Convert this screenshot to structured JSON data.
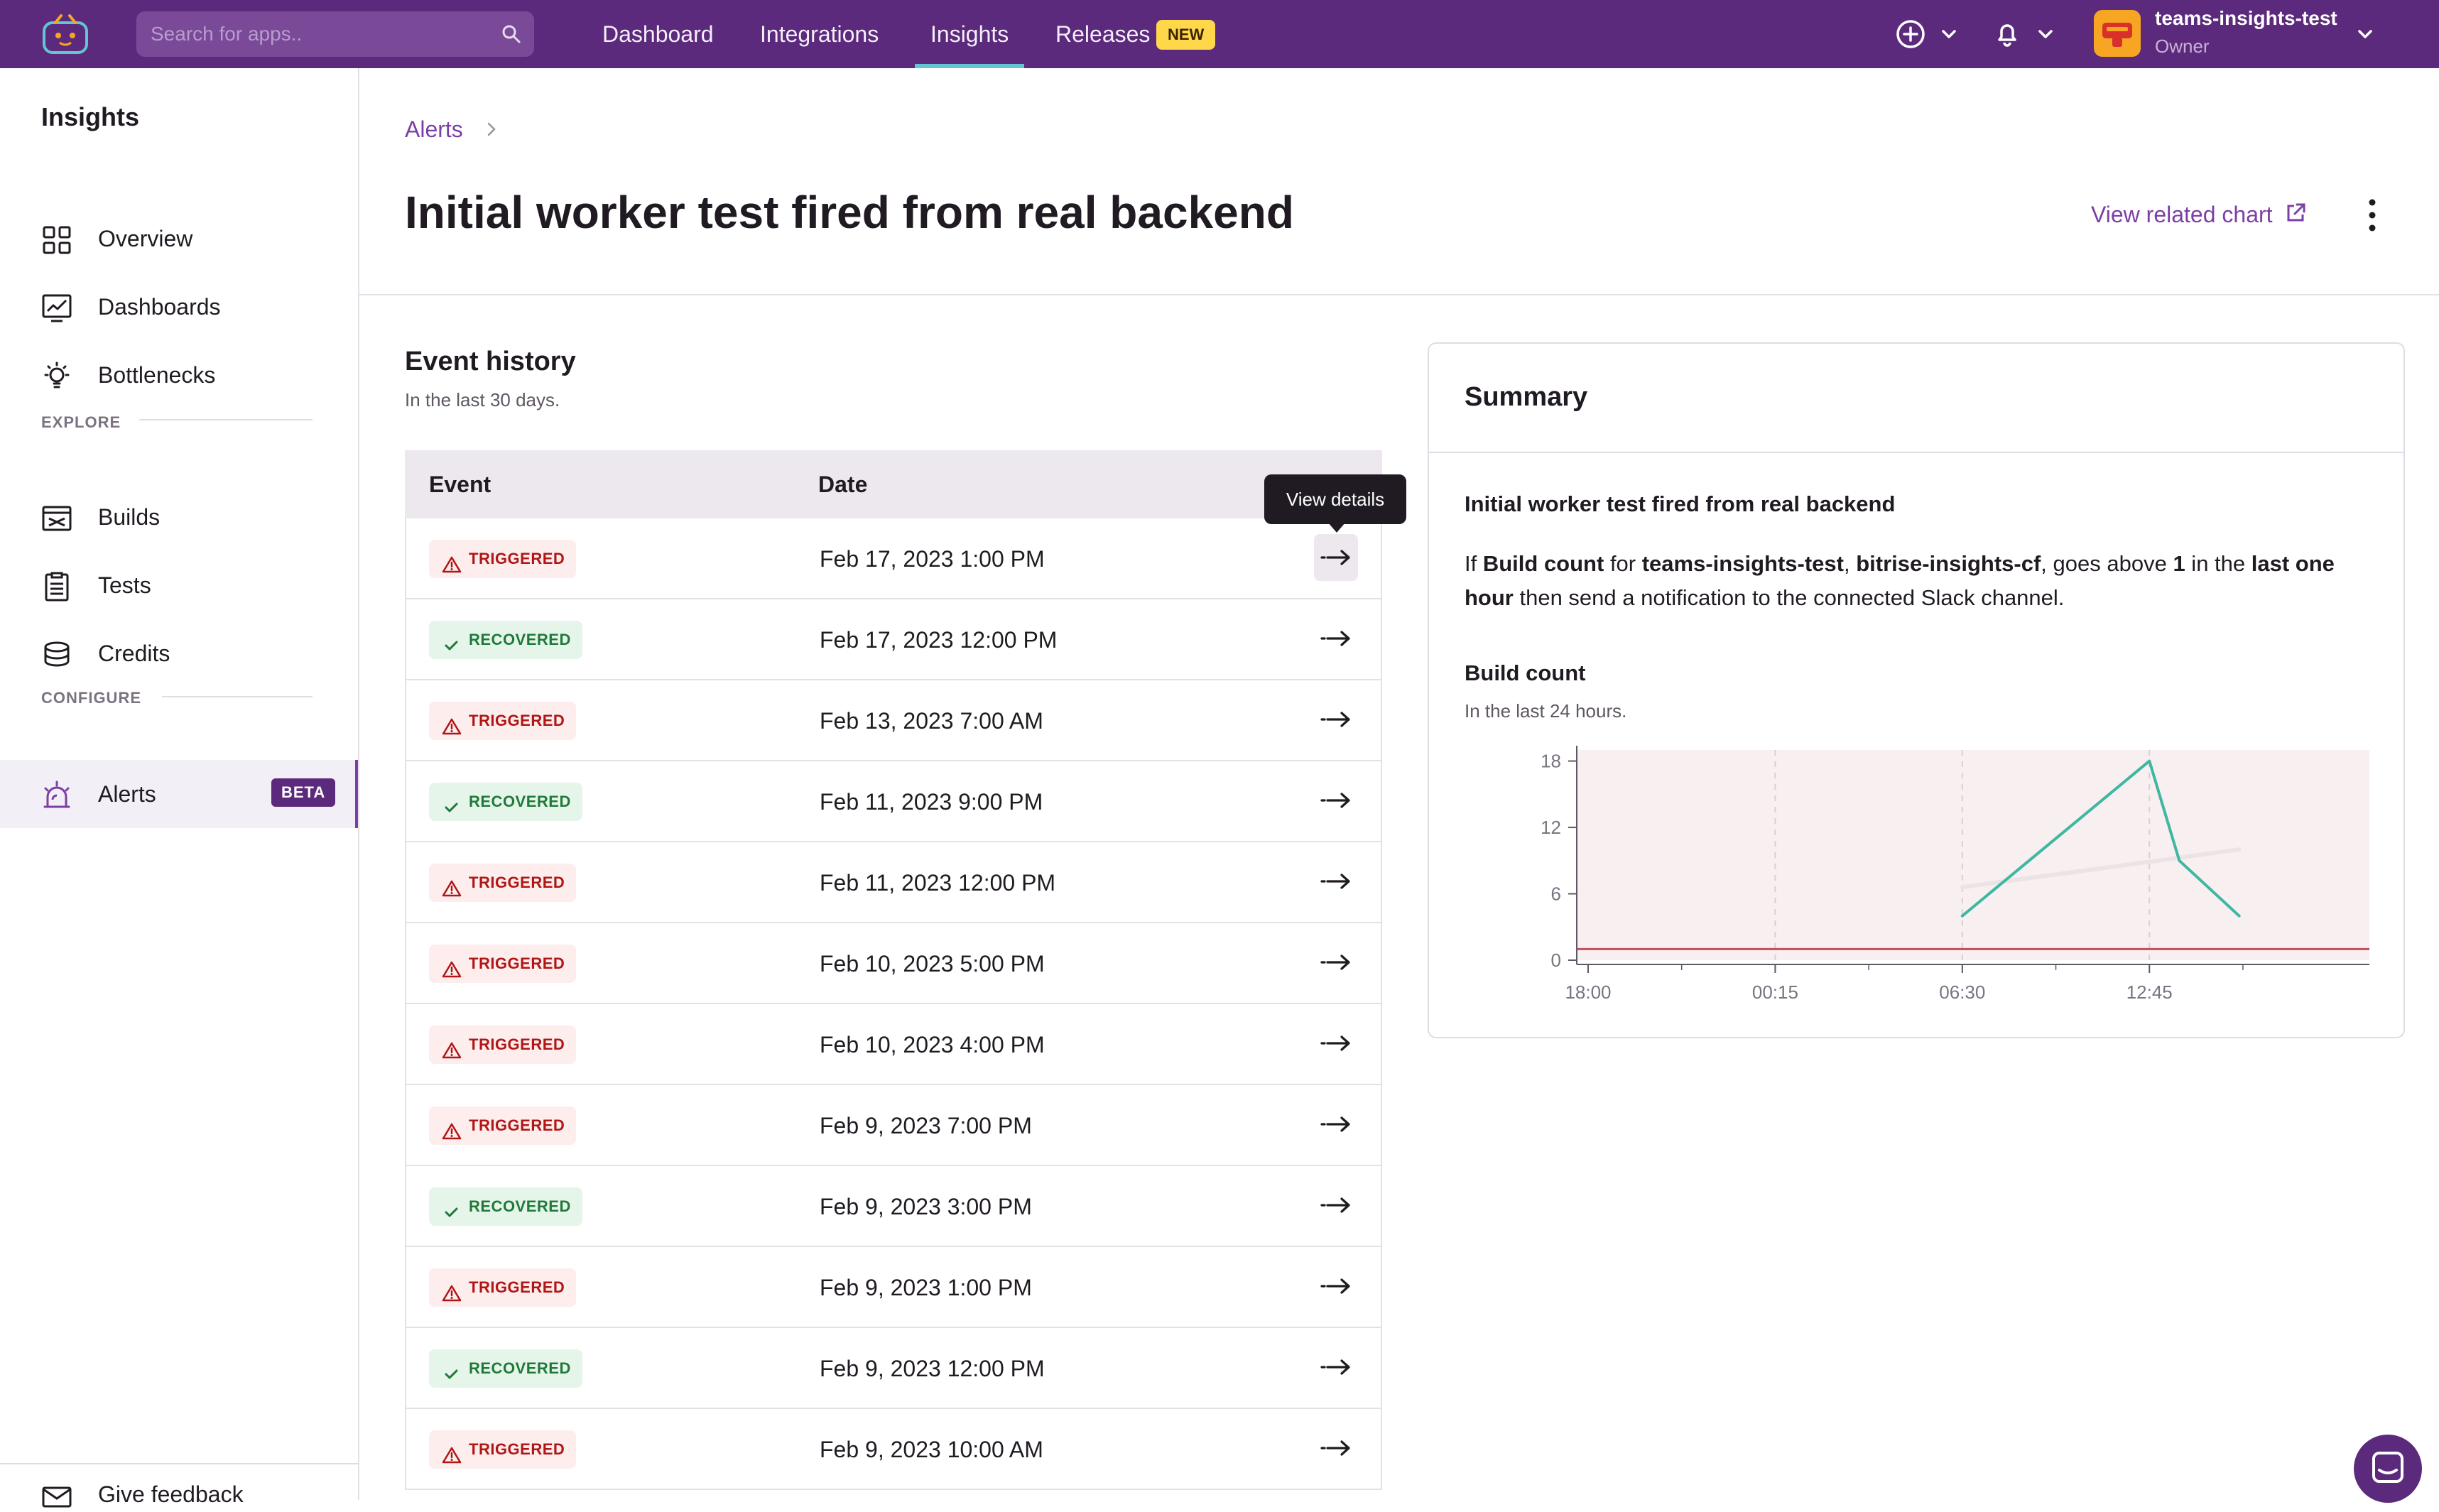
{
  "topbar": {
    "search_placeholder": "Search for apps..",
    "nav": [
      "Dashboard",
      "Integrations",
      "Insights",
      "Releases"
    ],
    "active_nav": "Insights",
    "releases_badge": "NEW",
    "org_name": "teams-insights-test",
    "org_role": "Owner"
  },
  "sidebar": {
    "title": "Insights",
    "items_top": [
      "Overview",
      "Dashboards",
      "Bottlenecks"
    ],
    "section_explore": "EXPLORE",
    "items_explore": [
      "Builds",
      "Tests",
      "Credits"
    ],
    "section_configure": "CONFIGURE",
    "alerts_label": "Alerts",
    "alerts_badge": "BETA",
    "feedback_label": "Give feedback"
  },
  "header": {
    "breadcrumb": "Alerts",
    "title": "Initial worker test fired from real backend",
    "related_chart": "View related chart"
  },
  "event_history": {
    "title": "Event history",
    "subtitle": "In the last 30 days.",
    "col_event": "Event",
    "col_date": "Date",
    "tooltip": "View details",
    "rows": [
      {
        "status": "TRIGGERED",
        "date": "Feb 17, 2023 1:00 PM"
      },
      {
        "status": "RECOVERED",
        "date": "Feb 17, 2023 12:00 PM"
      },
      {
        "status": "TRIGGERED",
        "date": "Feb 13, 2023 7:00 AM"
      },
      {
        "status": "RECOVERED",
        "date": "Feb 11, 2023 9:00 PM"
      },
      {
        "status": "TRIGGERED",
        "date": "Feb 11, 2023 12:00 PM"
      },
      {
        "status": "TRIGGERED",
        "date": "Feb 10, 2023 5:00 PM"
      },
      {
        "status": "TRIGGERED",
        "date": "Feb 10, 2023 4:00 PM"
      },
      {
        "status": "TRIGGERED",
        "date": "Feb 9, 2023 7:00 PM"
      },
      {
        "status": "RECOVERED",
        "date": "Feb 9, 2023 3:00 PM"
      },
      {
        "status": "TRIGGERED",
        "date": "Feb 9, 2023 1:00 PM"
      },
      {
        "status": "RECOVERED",
        "date": "Feb 9, 2023 12:00 PM"
      },
      {
        "status": "TRIGGERED",
        "date": "Feb 9, 2023 10:00 AM"
      }
    ]
  },
  "summary": {
    "title": "Summary",
    "alert_name": "Initial worker test fired from real backend",
    "desc": {
      "p1": "If ",
      "metric": "Build count",
      "p2": " for ",
      "app1": "teams-insights-test",
      "p3": ", ",
      "app2": "bitrise-insights-cf",
      "p4": ", goes above ",
      "threshold": "1",
      "p5": " in the ",
      "window": "last one hour",
      "p6": " then send a notification to the connected Slack channel."
    },
    "chart_title": "Build count",
    "chart_subtitle": "In the last 24 hours."
  },
  "chart_data": {
    "type": "line",
    "title": "Build count",
    "subtitle": "In the last 24 hours.",
    "x_ticks": [
      "18:00",
      "00:15",
      "06:30",
      "12:45"
    ],
    "y_ticks": [
      0,
      6,
      12,
      18
    ],
    "ylim": [
      0,
      19
    ],
    "threshold": 1,
    "series": [
      {
        "name": "",
        "color": "#3fb7a1",
        "x": [
          "06:30",
          "12:45",
          "13:45",
          "15:45"
        ],
        "values": [
          4,
          18,
          9,
          4
        ]
      },
      {
        "name": "",
        "color": "#ece3e6",
        "x": [
          "06:30",
          "15:45"
        ],
        "values": [
          6.6,
          10
        ]
      }
    ],
    "alert_zone_color": "#f8eff1",
    "threshold_color": "#c0505c"
  },
  "colors": {
    "brand": "#5c2a7c",
    "accent": "#7b3fa5",
    "nav_underline": "#62c5d1",
    "triggered": "#b01616",
    "recovered": "#1f7a3a"
  }
}
